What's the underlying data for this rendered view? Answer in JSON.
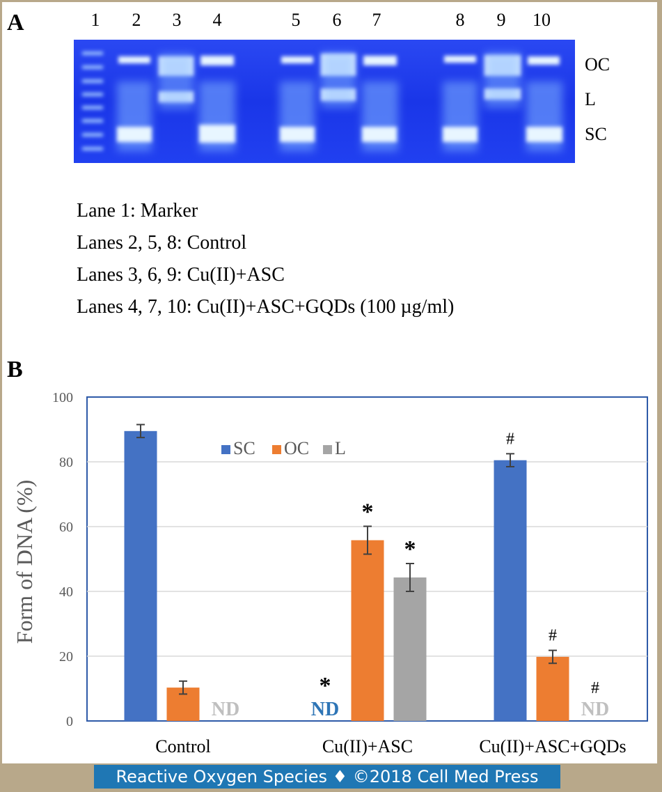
{
  "panel_a": {
    "letter": "A",
    "lane_numbers": [
      "1",
      "2",
      "3",
      "4",
      "5",
      "6",
      "7",
      "8",
      "9",
      "10"
    ],
    "band_labels": [
      "OC",
      "L",
      "SC"
    ],
    "legend_lines": [
      "Lane 1: Marker",
      "Lanes 2, 5, 8: Control",
      "Lanes 3, 6, 9: Cu(II)+ASC",
      "Lanes 4, 7, 10: Cu(II)+ASC+GQDs  (100 µg/ml)"
    ]
  },
  "panel_b": {
    "letter": "B"
  },
  "chart_data": {
    "type": "bar",
    "title": "",
    "xlabel": "",
    "ylabel": "Form of DNA (%)",
    "ylim": [
      0,
      100
    ],
    "yticks": [
      "0",
      "20",
      "40",
      "60",
      "80",
      "100"
    ],
    "grid": true,
    "legend_position": "top-center",
    "categories": [
      "Control",
      "Cu(II)+ASC",
      "Cu(II)+ASC+GQDs"
    ],
    "series": [
      {
        "name": "SC",
        "color": "#4472c4",
        "values": [
          89.5,
          null,
          80.5
        ],
        "errors": [
          2,
          null,
          2
        ],
        "nd_labels": [
          "",
          "ND",
          ""
        ],
        "marks": [
          "",
          "*",
          "#"
        ],
        "nd_color": "#2e75b6"
      },
      {
        "name": "OC",
        "color": "#ed7d31",
        "values": [
          10.3,
          55.8,
          19.8
        ],
        "errors": [
          2,
          4.3,
          2
        ],
        "nd_labels": [
          "",
          "",
          ""
        ],
        "marks": [
          "",
          "*",
          "#"
        ],
        "nd_color": "#bfbfbf"
      },
      {
        "name": "L",
        "color": "#a5a5a5",
        "values": [
          null,
          44.3,
          null
        ],
        "errors": [
          null,
          4.3,
          null
        ],
        "nd_labels": [
          "ND",
          "",
          "ND"
        ],
        "marks": [
          "",
          "*",
          "#"
        ],
        "nd_color": "#bfbfbf"
      }
    ]
  },
  "footer": {
    "text": "Reactive Oxygen Species ♦ ©2018 Cell Med Press"
  }
}
